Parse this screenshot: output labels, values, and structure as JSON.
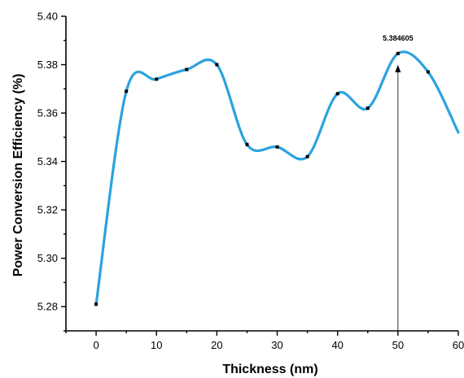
{
  "chart_data": {
    "type": "line",
    "title": "",
    "xlabel": "Thickness (nm)",
    "ylabel": "Power Conversion Efficiency (%)",
    "xlim": [
      -5,
      60
    ],
    "ylim": [
      5.27,
      5.4
    ],
    "x_ticks": [
      0,
      10,
      20,
      30,
      40,
      50,
      60
    ],
    "x_tick_labels": [
      "0",
      "10",
      "20",
      "30",
      "40",
      "50",
      "60"
    ],
    "y_ticks": [
      5.28,
      5.3,
      5.32,
      5.34,
      5.36,
      5.38,
      5.4
    ],
    "y_tick_labels": [
      "5.28",
      "5.30",
      "5.32",
      "5.34",
      "5.36",
      "5.38",
      "5.40"
    ],
    "grid": false,
    "smooth": true,
    "line_color": "#2ba3de",
    "marker_color": "#000000",
    "x": [
      0,
      5,
      10,
      15,
      20,
      25,
      30,
      35,
      40,
      45,
      50,
      55,
      60
    ],
    "series": [
      {
        "values": [
          5.281,
          5.369,
          5.374,
          5.378,
          5.38,
          5.347,
          5.346,
          5.342,
          5.368,
          5.362,
          5.3846,
          5.377,
          5.352
        ]
      }
    ],
    "visible_markers_x": [
      0,
      5,
      10,
      15,
      20,
      25,
      30,
      35,
      40,
      45,
      50,
      55
    ],
    "annotations": [
      {
        "text": "5.384605",
        "x": 50,
        "y": 5.384605
      }
    ]
  }
}
